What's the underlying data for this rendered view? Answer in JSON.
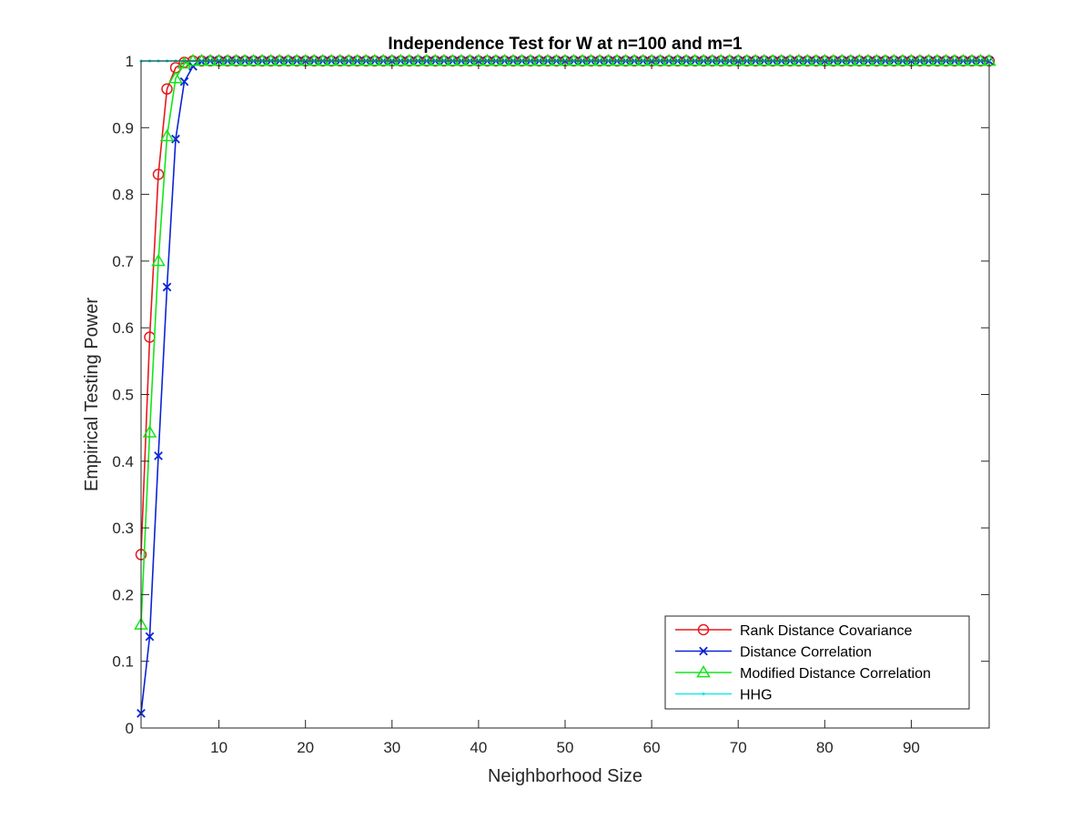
{
  "chart_data": {
    "type": "line",
    "title": "Independence Test for W at n=100 and m=1",
    "xlabel": "Neighborhood Size",
    "ylabel": "Empirical Testing Power",
    "xlim": [
      1,
      99
    ],
    "ylim": [
      0,
      1
    ],
    "xticks": [
      10,
      20,
      30,
      40,
      50,
      60,
      70,
      80,
      90
    ],
    "xtick_labels": [
      "10",
      "20",
      "30",
      "40",
      "50",
      "60",
      "70",
      "80",
      "90"
    ],
    "yticks": [
      0,
      0.1,
      0.2,
      0.3,
      0.4,
      0.5,
      0.6,
      0.7,
      0.8,
      0.9,
      1
    ],
    "ytick_labels": [
      "0",
      "0.1",
      "0.2",
      "0.3",
      "0.4",
      "0.5",
      "0.6",
      "0.7",
      "0.8",
      "0.9",
      "1"
    ],
    "grid": false,
    "legend_position": "bottom-right",
    "x_start": 1,
    "x_end": 99,
    "series": [
      {
        "name": "Rank Distance Covariance",
        "color": "#e8191d",
        "marker": "circle",
        "values_start": [
          0.26,
          0.586,
          0.83,
          0.958,
          0.99,
          0.998
        ],
        "fill_value": 1.0
      },
      {
        "name": "Distance Correlation",
        "color": "#0b24d6",
        "marker": "x",
        "values_start": [
          0.022,
          0.137,
          0.408,
          0.661,
          0.883,
          0.969,
          0.992,
          0.999
        ],
        "fill_value": 1.0
      },
      {
        "name": "Modified Distance Correlation",
        "color": "#13e51b",
        "marker": "triangle",
        "values_start": [
          0.155,
          0.443,
          0.7,
          0.887,
          0.974,
          0.996
        ],
        "fill_value": 1.0
      },
      {
        "name": "HHG",
        "color": "#12ebeb",
        "marker": "dot",
        "values_start": [
          1.0
        ],
        "fill_value": 1.0
      }
    ]
  }
}
